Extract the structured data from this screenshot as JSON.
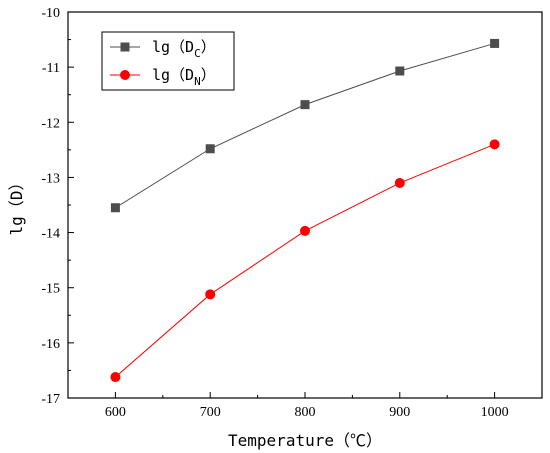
{
  "chart_data": {
    "type": "line",
    "x": [
      600,
      700,
      800,
      900,
      1000
    ],
    "series": [
      {
        "name_main": "lg（D",
        "name_sub": "C",
        "name_close": "）",
        "values": [
          -13.55,
          -12.48,
          -11.68,
          -11.07,
          -10.57
        ],
        "color": "#4d4d4d",
        "marker": "square"
      },
      {
        "name_main": "lg（D",
        "name_sub": "N",
        "name_close": "）",
        "values": [
          -16.62,
          -15.12,
          -13.97,
          -13.1,
          -12.4
        ],
        "color": "#ff0000",
        "marker": "circle"
      }
    ],
    "xlabel": "Temperature（℃）",
    "ylabel": "lg（D）",
    "xlim": [
      550,
      1050
    ],
    "ylim": [
      -17,
      -10
    ],
    "xticks": [
      600,
      700,
      800,
      900,
      1000
    ],
    "yticks": [
      -17,
      -16,
      -15,
      -14,
      -13,
      -12,
      -11,
      -10
    ],
    "grid": false,
    "legend_position": "top-left"
  }
}
